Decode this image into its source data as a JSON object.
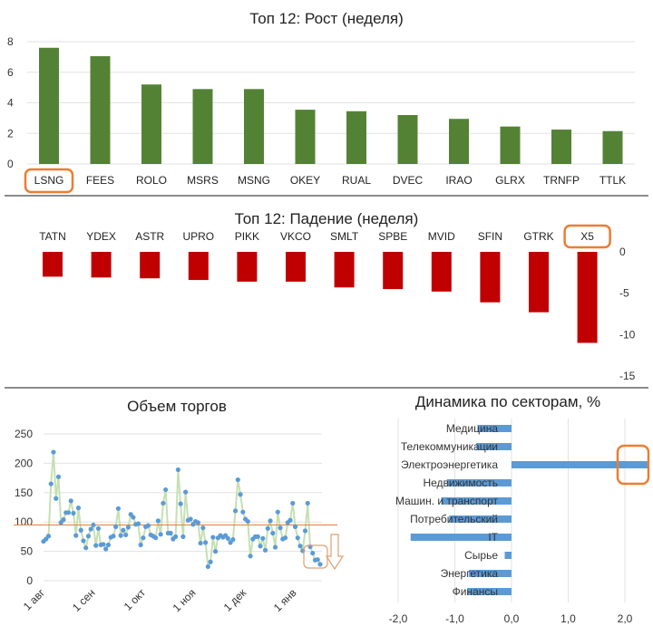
{
  "chart_data": [
    {
      "type": "bar",
      "title": "Топ 12: Рост (неделя)",
      "categories": [
        "LSNG",
        "FEES",
        "ROLO",
        "MSRS",
        "MSNG",
        "OKEY",
        "RUAL",
        "DVEC",
        "IRAO",
        "GLRX",
        "TRNFP",
        "TTLK"
      ],
      "values": [
        7.6,
        7.05,
        5.2,
        4.9,
        4.9,
        3.55,
        3.45,
        3.2,
        2.95,
        2.45,
        2.25,
        2.15
      ],
      "ylim": [
        0,
        8
      ],
      "yticks": [
        0,
        2,
        4,
        6,
        8
      ],
      "color": "#548235",
      "highlight": "LSNG",
      "grid": true
    },
    {
      "type": "bar",
      "title": "Топ 12: Падение (неделя)",
      "categories": [
        "TATN",
        "YDEX",
        "ASTR",
        "UPRO",
        "PIKK",
        "VKCO",
        "SMLT",
        "SPBE",
        "MVID",
        "SFIN",
        "GTRK",
        "X5"
      ],
      "values": [
        -3.0,
        -3.1,
        -3.2,
        -3.4,
        -3.6,
        -3.6,
        -4.3,
        -4.5,
        -4.8,
        -6.1,
        -7.3,
        -11.0
      ],
      "ylim": [
        -15,
        0
      ],
      "yticks": [
        0,
        -5,
        -10,
        -15
      ],
      "color": "#C00000",
      "highlight": "X5",
      "axis_side": "right"
    },
    {
      "type": "line",
      "title": "Объем торгов",
      "values": [
        67,
        71,
        76,
        165,
        219,
        140,
        177,
        99,
        104,
        116,
        116,
        136,
        115,
        77,
        124,
        86,
        68,
        56,
        76,
        88,
        95,
        60,
        89,
        61,
        62,
        54,
        61,
        74,
        76,
        92,
        123,
        77,
        86,
        78,
        91,
        113,
        108,
        96,
        97,
        61,
        73,
        92,
        94,
        78,
        76,
        73,
        102,
        79,
        132,
        155,
        81,
        81,
        71,
        75,
        189,
        131,
        75,
        151,
        103,
        105,
        96,
        101,
        99,
        64,
        90,
        65,
        24,
        32,
        74,
        50,
        73,
        77,
        74,
        77,
        72,
        65,
        70,
        119,
        172,
        147,
        117,
        105,
        101,
        42,
        71,
        75,
        75,
        59,
        72,
        52,
        89,
        102,
        81,
        57,
        117,
        90,
        71,
        73,
        99,
        103,
        132,
        92,
        73,
        59,
        51,
        85,
        132,
        58,
        47,
        35,
        36,
        28
      ],
      "average": 95,
      "xticks": [
        "1 авг",
        "1 сен",
        "1 окт",
        "1 ноя",
        "1 дек",
        "1 янв"
      ],
      "ylim": [
        0,
        250
      ],
      "yticks": [
        0,
        50,
        100,
        150,
        200,
        250
      ],
      "line_color": "#C5E0B4",
      "marker_color": "#5B9BD5",
      "avg_color": "#ED7D31",
      "grid": true
    },
    {
      "type": "bar",
      "orientation": "horizontal",
      "title": "Динамика по секторам, %",
      "categories": [
        "Медицина",
        "Телекоммуникации",
        "Электроэнергетика",
        "Недвижимость",
        "Машин. и транспорт",
        "Потребительский",
        "IT",
        "Сырье",
        "Энергетика",
        "Финансы"
      ],
      "values": [
        -0.6,
        -0.62,
        2.4,
        -1.14,
        -1.24,
        -1.1,
        -1.78,
        -0.12,
        -0.75,
        -0.78
      ],
      "xlim": [
        -2.2,
        2.4
      ],
      "xticks": [
        "-2,0",
        "-1,0",
        "0,0",
        "1,0",
        "2,0"
      ],
      "color": "#5B9BD5",
      "highlight": "Электроэнергетика",
      "grid": true
    }
  ]
}
